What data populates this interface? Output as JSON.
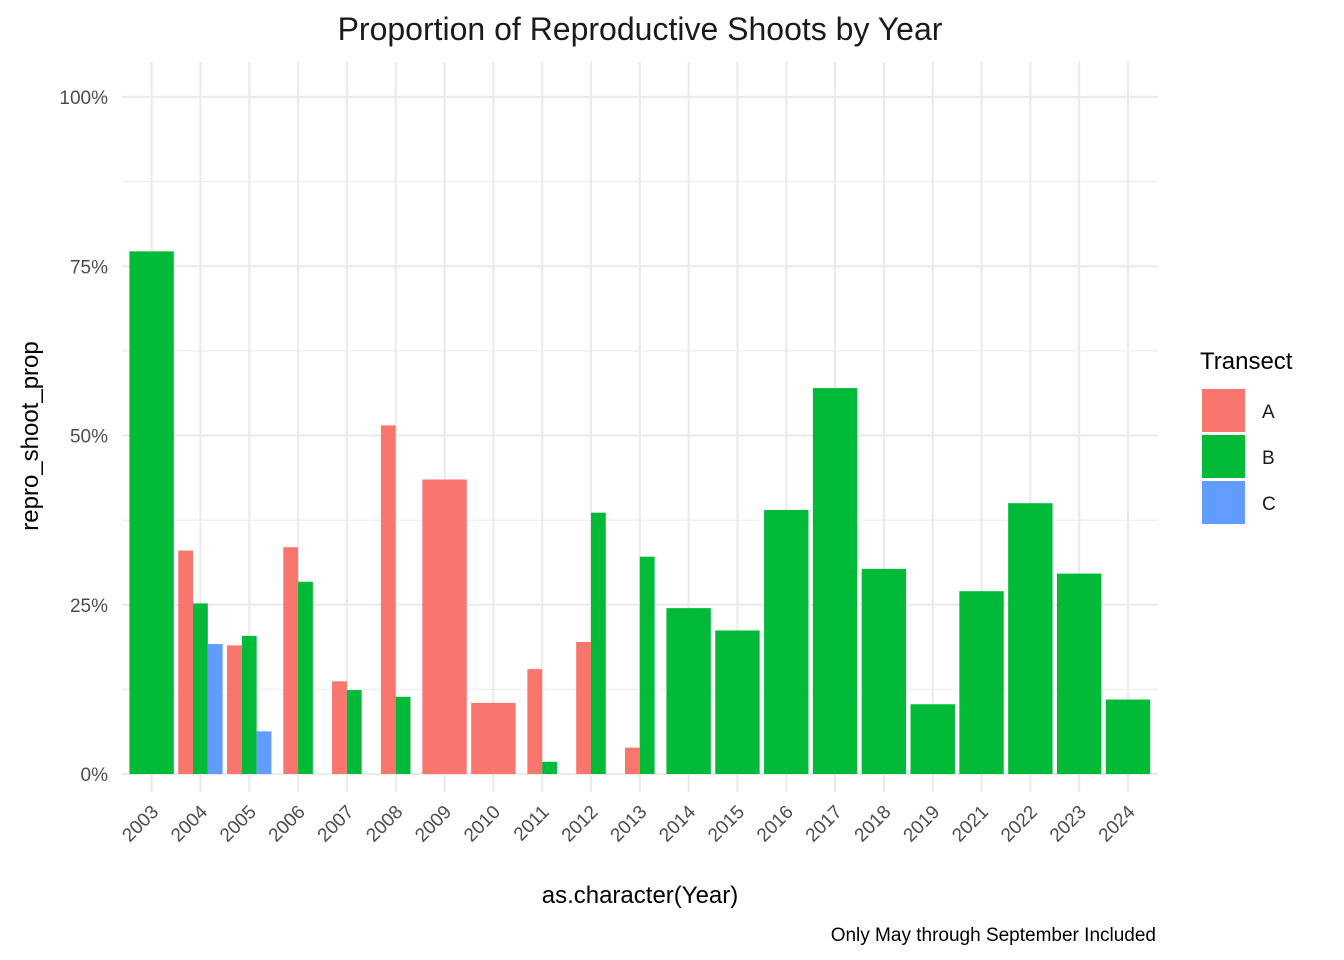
{
  "chart_data": {
    "type": "bar",
    "title": "Proportion of Reproductive Shoots by Year",
    "xlabel": "as.character(Year)",
    "ylabel": "repro_shoot_prop",
    "caption": "Only May through September Included",
    "categories": [
      "2003",
      "2004",
      "2005",
      "2006",
      "2007",
      "2008",
      "2009",
      "2010",
      "2011",
      "2012",
      "2013",
      "2014",
      "2015",
      "2016",
      "2017",
      "2018",
      "2019",
      "2021",
      "2022",
      "2023",
      "2024"
    ],
    "ylim": [
      0,
      1
    ],
    "y_ticks": [
      0,
      0.25,
      0.5,
      0.75,
      1
    ],
    "y_tick_labels": [
      "0%",
      "25%",
      "50%",
      "75%",
      "100%"
    ],
    "legend_title": "Transect",
    "legend_position": "right",
    "grid": true,
    "series": [
      {
        "name": "A",
        "color": "#F8766D",
        "values": [
          null,
          0.33,
          0.19,
          0.335,
          0.137,
          0.515,
          0.435,
          0.105,
          0.155,
          0.195,
          0.039,
          null,
          null,
          null,
          null,
          null,
          null,
          null,
          null,
          null,
          null
        ]
      },
      {
        "name": "B",
        "color": "#00BA38",
        "values": [
          0.772,
          0.252,
          0.204,
          0.284,
          0.124,
          0.114,
          null,
          null,
          0.018,
          0.386,
          0.321,
          0.245,
          0.212,
          0.39,
          0.57,
          0.303,
          0.103,
          0.27,
          0.4,
          0.296,
          0.11
        ]
      },
      {
        "name": "C",
        "color": "#619CFF",
        "values": [
          null,
          0.192,
          0.063,
          null,
          null,
          null,
          null,
          null,
          null,
          null,
          null,
          null,
          null,
          null,
          null,
          null,
          null,
          null,
          null,
          null,
          null
        ]
      }
    ]
  }
}
